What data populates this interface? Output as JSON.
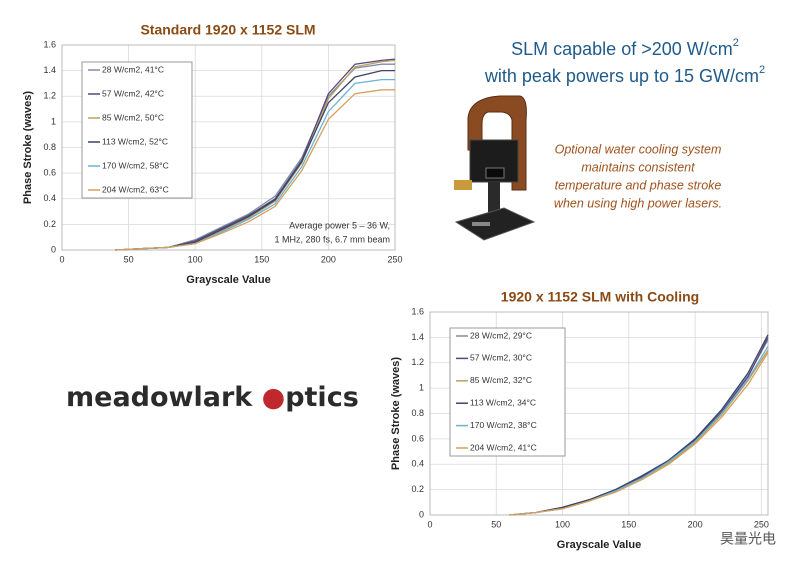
{
  "chart_data": [
    {
      "type": "line",
      "title": "Standard 1920 x 1152 SLM",
      "x_label": "Grayscale Value",
      "y_label": "Phase Stroke (waves)",
      "x": [
        40,
        60,
        80,
        100,
        120,
        140,
        160,
        180,
        200,
        220,
        240,
        250
      ],
      "series": [
        {
          "name": "28 W/cm2, 41°C",
          "color": "#7e8ca8",
          "values": [
            0,
            0.01,
            0.02,
            0.08,
            0.18,
            0.28,
            0.42,
            0.72,
            1.2,
            1.42,
            1.45,
            1.45
          ]
        },
        {
          "name": "57 W/cm2, 42°C",
          "color": "#5a467e",
          "values": [
            0,
            0.01,
            0.02,
            0.07,
            0.17,
            0.27,
            0.4,
            0.7,
            1.22,
            1.45,
            1.48,
            1.49
          ]
        },
        {
          "name": "85 W/cm2, 50°C",
          "color": "#b9a25e",
          "values": [
            0,
            0.01,
            0.02,
            0.06,
            0.15,
            0.25,
            0.38,
            0.68,
            1.18,
            1.43,
            1.47,
            1.48
          ]
        },
        {
          "name": "113 W/cm2, 52°C",
          "color": "#3a4666",
          "values": [
            0,
            0.01,
            0.02,
            0.06,
            0.16,
            0.26,
            0.39,
            0.69,
            1.15,
            1.35,
            1.4,
            1.4
          ]
        },
        {
          "name": "170 W/cm2, 58°C",
          "color": "#6cb2d6",
          "values": [
            0,
            0.01,
            0.02,
            0.05,
            0.14,
            0.24,
            0.36,
            0.65,
            1.08,
            1.3,
            1.33,
            1.33
          ]
        },
        {
          "name": "204 W/cm2, 63°C",
          "color": "#d6a05a",
          "values": [
            0,
            0.01,
            0.02,
            0.05,
            0.13,
            0.22,
            0.34,
            0.62,
            1.02,
            1.22,
            1.25,
            1.25
          ]
        }
      ],
      "annotations": [
        "Average power  5 – 36 W,",
        "1 MHz, 280 fs, 6.7 mm beam"
      ],
      "xlim": [
        0,
        250
      ],
      "xticks": [
        0,
        50,
        100,
        150,
        200,
        250
      ],
      "ylim": [
        0,
        1.6
      ],
      "yticks": [
        0,
        0.2,
        0.4,
        0.6,
        0.8,
        1,
        1.2,
        1.4,
        1.6
      ],
      "grid": true
    },
    {
      "type": "line",
      "title": "1920 x 1152 SLM with Cooling",
      "x_label": "Grayscale Value",
      "y_label": "Phase Stroke (waves)",
      "x": [
        60,
        80,
        100,
        120,
        140,
        160,
        180,
        200,
        220,
        240,
        255
      ],
      "series": [
        {
          "name": "28 W/cm2, 29°C",
          "color": "#7e8ca8",
          "values": [
            0,
            0.02,
            0.06,
            0.12,
            0.2,
            0.3,
            0.43,
            0.6,
            0.82,
            1.1,
            1.38
          ]
        },
        {
          "name": "57 W/cm2, 30°C",
          "color": "#5a467e",
          "values": [
            0,
            0.02,
            0.06,
            0.12,
            0.2,
            0.3,
            0.42,
            0.59,
            0.81,
            1.09,
            1.4
          ]
        },
        {
          "name": "85 W/cm2, 32°C",
          "color": "#b9a25e",
          "values": [
            0,
            0.02,
            0.05,
            0.11,
            0.19,
            0.29,
            0.41,
            0.57,
            0.79,
            1.06,
            1.3
          ]
        },
        {
          "name": "113 W/cm2, 34°C",
          "color": "#3a4666",
          "values": [
            0,
            0.02,
            0.06,
            0.12,
            0.2,
            0.31,
            0.43,
            0.6,
            0.83,
            1.12,
            1.42
          ]
        },
        {
          "name": "170 W/cm2, 38°C",
          "color": "#6cb2d6",
          "values": [
            0,
            0.02,
            0.05,
            0.11,
            0.19,
            0.29,
            0.42,
            0.58,
            0.8,
            1.07,
            1.33
          ]
        },
        {
          "name": "204 W/cm2, 41°C",
          "color": "#d6a05a",
          "values": [
            0,
            0.02,
            0.05,
            0.11,
            0.18,
            0.28,
            0.4,
            0.56,
            0.77,
            1.03,
            1.28
          ]
        }
      ],
      "xlim": [
        0,
        255
      ],
      "xticks": [
        0,
        50,
        100,
        150,
        200,
        250
      ],
      "ylim": [
        0,
        1.6
      ],
      "yticks": [
        0,
        0.2,
        0.4,
        0.6,
        0.8,
        1,
        1.2,
        1.4,
        1.6
      ],
      "grid": true
    }
  ],
  "headline": [
    {
      "text": "SLM capable of >200 W/cm",
      "sup": "2"
    },
    {
      "text": "with peak powers up to 15 GW/cm",
      "sup": "2"
    }
  ],
  "description": [
    "Optional water cooling system",
    "maintains consistent",
    "temperature and phase stroke",
    "when using high power lasers."
  ],
  "logo": {
    "part1": "meadowlark ",
    "part2": "ptics"
  },
  "watermark": "昊量光电"
}
